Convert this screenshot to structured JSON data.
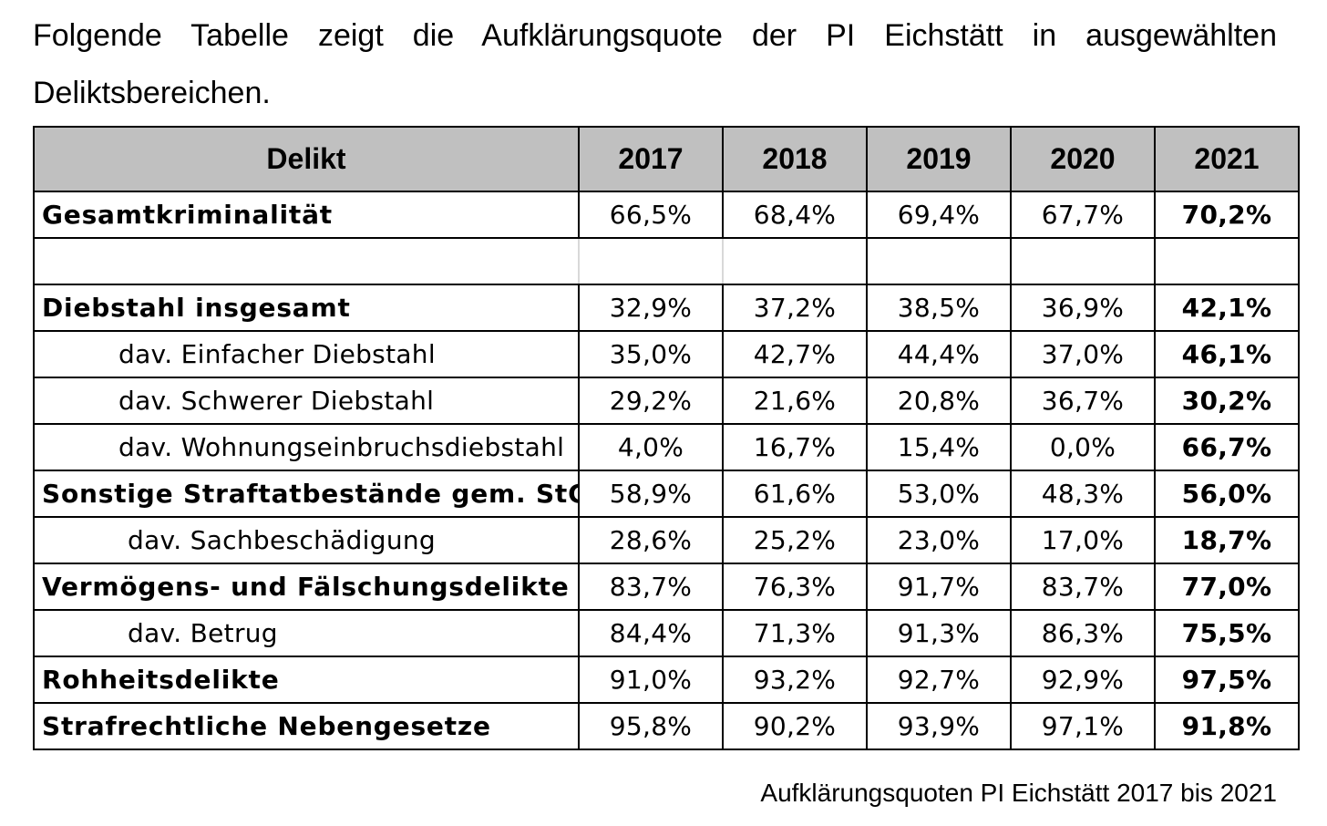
{
  "intro_text": "Folgende Tabelle zeigt die Aufklärungsquote der PI Eichstätt in ausgewählten Deliktsbereichen.",
  "table": {
    "header": [
      "Delikt",
      "2017",
      "2018",
      "2019",
      "2020",
      "2021"
    ],
    "rows": [
      {
        "label": "Gesamtkriminalität",
        "values": [
          "66,5%",
          "68,4%",
          "69,4%",
          "67,7%",
          "70,2%"
        ]
      },
      {
        "label": "Diebstahl insgesamt",
        "values": [
          "32,9%",
          "37,2%",
          "38,5%",
          "36,9%",
          "42,1%"
        ]
      },
      {
        "label": "dav. Einfacher Diebstahl",
        "values": [
          "35,0%",
          "42,7%",
          "44,4%",
          "37,0%",
          "46,1%"
        ]
      },
      {
        "label": "dav. Schwerer Diebstahl",
        "values": [
          "29,2%",
          "21,6%",
          "20,8%",
          "36,7%",
          "30,2%"
        ]
      },
      {
        "label": "dav. Wohnungseinbruchsdiebstahl",
        "values": [
          "4,0%",
          "16,7%",
          "15,4%",
          "0,0%",
          "66,7%"
        ]
      },
      {
        "label": "Sonstige Straftatbestände gem. StGB",
        "values": [
          "58,9%",
          "61,6%",
          "53,0%",
          "48,3%",
          "56,0%"
        ]
      },
      {
        "label": "dav. Sachbeschädigung",
        "values": [
          "28,6%",
          "25,2%",
          "23,0%",
          "17,0%",
          "18,7%"
        ]
      },
      {
        "label": "Vermögens- und Fälschungsdelikte",
        "values": [
          "83,7%",
          "76,3%",
          "91,7%",
          "83,7%",
          "77,0%"
        ]
      },
      {
        "label": "dav. Betrug",
        "values": [
          "84,4%",
          "71,3%",
          "91,3%",
          "86,3%",
          "75,5%"
        ]
      },
      {
        "label": "Rohheitsdelikte",
        "values": [
          "91,0%",
          "93,2%",
          "92,7%",
          "92,9%",
          "97,5%"
        ]
      },
      {
        "label": "Strafrechtliche Nebengesetze",
        "values": [
          "95,8%",
          "90,2%",
          "93,9%",
          "97,1%",
          "91,8%"
        ]
      }
    ]
  },
  "caption": "Aufklärungsquoten PI Eichstätt 2017 bis 2021",
  "colors": {
    "header_background": "#c0c0c0",
    "border": "#000000"
  }
}
